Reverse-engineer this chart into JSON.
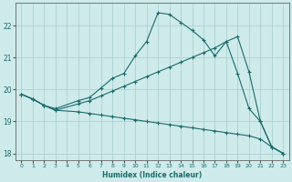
{
  "xlabel": "Humidex (Indice chaleur)",
  "background_color": "#ceeaea",
  "grid_color": "#aed0d0",
  "line_color": "#1a6b6b",
  "xlim": [
    -0.5,
    23.5
  ],
  "ylim": [
    17.8,
    22.7
  ],
  "xticks": [
    0,
    1,
    2,
    3,
    4,
    5,
    6,
    7,
    8,
    9,
    10,
    11,
    12,
    13,
    14,
    15,
    16,
    17,
    18,
    19,
    20,
    21,
    22,
    23
  ],
  "yticks": [
    18,
    19,
    20,
    21,
    22
  ],
  "curve1_x": [
    0,
    1,
    2,
    3,
    5,
    6,
    7,
    8,
    9,
    10,
    11,
    12,
    13,
    14,
    15,
    16,
    17,
    18,
    19,
    20,
    21,
    22,
    23
  ],
  "curve1_y": [
    19.85,
    19.7,
    19.5,
    19.4,
    19.65,
    19.75,
    20.05,
    20.35,
    20.5,
    21.05,
    21.5,
    22.4,
    22.35,
    22.1,
    21.85,
    21.55,
    21.05,
    21.5,
    20.5,
    19.4,
    19.0,
    18.2,
    18.0
  ],
  "curve2_x": [
    0,
    1,
    2,
    3,
    5,
    6,
    7,
    8,
    9,
    10,
    11,
    12,
    13,
    14,
    15,
    16,
    17,
    18,
    19,
    20,
    21,
    22,
    23
  ],
  "curve2_y": [
    19.85,
    19.7,
    19.5,
    19.35,
    19.55,
    19.65,
    19.8,
    19.95,
    20.1,
    20.25,
    20.4,
    20.55,
    20.7,
    20.85,
    21.0,
    21.15,
    21.3,
    21.5,
    21.65,
    20.55,
    19.0,
    18.2,
    18.0
  ],
  "curve3_x": [
    0,
    1,
    2,
    3,
    5,
    6,
    7,
    8,
    9,
    10,
    11,
    12,
    13,
    14,
    15,
    16,
    17,
    18,
    19,
    20,
    21,
    22,
    23
  ],
  "curve3_y": [
    19.85,
    19.7,
    19.5,
    19.35,
    19.3,
    19.25,
    19.2,
    19.15,
    19.1,
    19.05,
    19.0,
    18.95,
    18.9,
    18.85,
    18.8,
    18.75,
    18.7,
    18.65,
    18.6,
    18.55,
    18.45,
    18.2,
    18.0
  ]
}
